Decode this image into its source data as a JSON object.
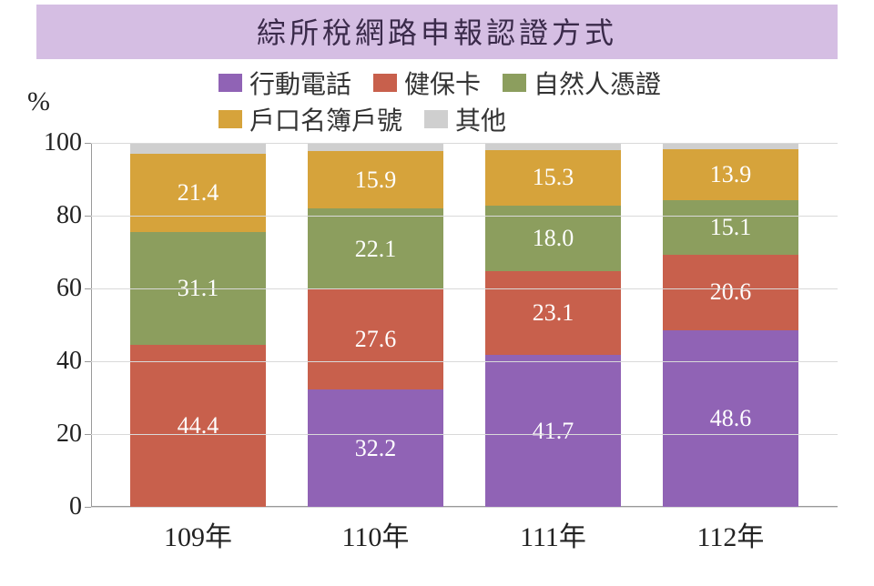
{
  "chart": {
    "type": "stacked-bar",
    "title": "綜所稅網路申報認證方式",
    "title_bg": "#d5bee3",
    "y_unit": "%",
    "ylim": [
      0,
      100
    ],
    "ytick_step": 20,
    "yticks": [
      0,
      20,
      40,
      60,
      80,
      100
    ],
    "bar_width_pct": 76,
    "background_color": "#ffffff",
    "grid_color": "#d9d9d9",
    "axis_color": "#999999",
    "label_color": "#ffffff",
    "label_fontsize": 26,
    "axis_fontsize": 28,
    "title_fontsize": 32,
    "categories": [
      "109年",
      "110年",
      "111年",
      "112年"
    ],
    "series": [
      {
        "name": "行動電話",
        "color": "#9063b5"
      },
      {
        "name": "健保卡",
        "color": "#c8604c"
      },
      {
        "name": "自然人憑證",
        "color": "#8c9e5e"
      },
      {
        "name": "戶口名簿戶號",
        "color": "#d6a33b"
      },
      {
        "name": "其他",
        "color": "#cfcfcf"
      }
    ],
    "data": [
      {
        "values": [
          0,
          44.4,
          31.1,
          21.4,
          3.1
        ],
        "labels": [
          "",
          "44.4",
          "31.1",
          "21.4",
          ""
        ]
      },
      {
        "values": [
          32.2,
          27.6,
          22.1,
          15.9,
          2.2
        ],
        "labels": [
          "32.2",
          "27.6",
          "22.1",
          "15.9",
          ""
        ]
      },
      {
        "values": [
          41.7,
          23.1,
          18.0,
          15.3,
          1.9
        ],
        "labels": [
          "41.7",
          "23.1",
          "18.0",
          "15.3",
          ""
        ]
      },
      {
        "values": [
          48.6,
          20.6,
          15.1,
          13.9,
          1.8
        ],
        "labels": [
          "48.6",
          "20.6",
          "15.1",
          "13.9",
          ""
        ]
      }
    ]
  }
}
